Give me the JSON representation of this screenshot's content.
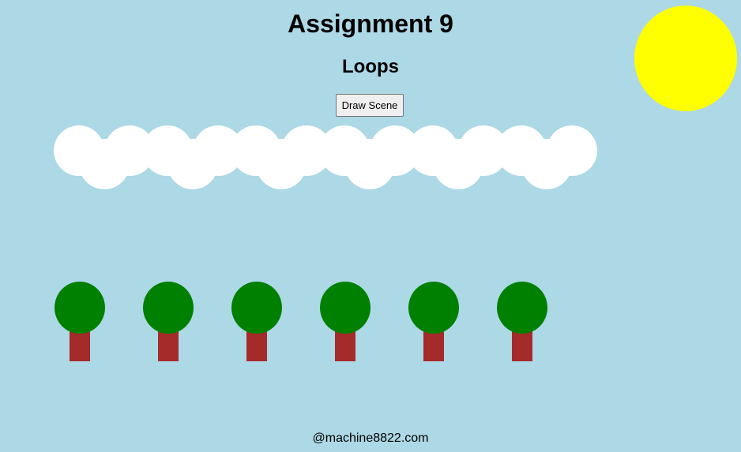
{
  "title": "Assignment 9",
  "subtitle": "Loops",
  "button": {
    "label": "Draw Scene"
  },
  "footer": "@machine8822.com",
  "scene": {
    "cloud_count": 6,
    "tree_count": 6,
    "colors": {
      "sky": "#add8e6",
      "sun": "#ffff00",
      "cloud": "#ffffff",
      "tree_top": "#008000",
      "trunk": "#a52a2a"
    }
  }
}
